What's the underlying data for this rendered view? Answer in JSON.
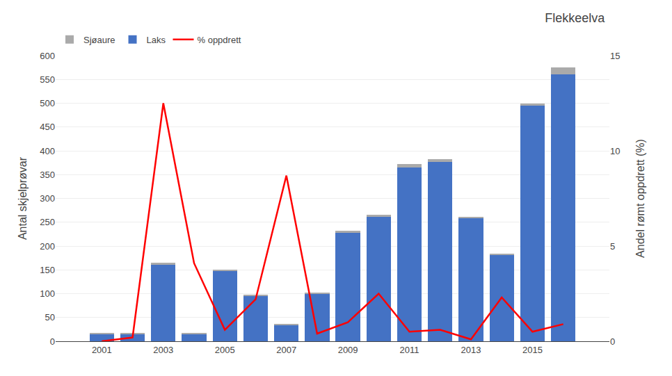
{
  "chart_data": {
    "type": "bar",
    "title": "Flekkeelva",
    "x": [
      2001,
      2002,
      2003,
      2004,
      2005,
      2006,
      2007,
      2008,
      2009,
      2010,
      2011,
      2012,
      2013,
      2014,
      2015,
      2016
    ],
    "series": [
      {
        "name": "Laks",
        "color": "#4472C4",
        "values": [
          15,
          15,
          160,
          15,
          148,
          95,
          35,
          100,
          228,
          262,
          365,
          377,
          258,
          182,
          495,
          560
        ]
      },
      {
        "name": "Sjøaure",
        "color": "#AAAAAA",
        "values": [
          3,
          3,
          5,
          2,
          2,
          3,
          2,
          2,
          4,
          3,
          8,
          5,
          3,
          2,
          4,
          15
        ]
      },
      {
        "name": "% oppdrett",
        "color": "#FF0000",
        "type": "line",
        "axis": "y2",
        "values": [
          0.0,
          0.2,
          12.5,
          4.1,
          0.6,
          2.2,
          8.7,
          0.4,
          1.0,
          2.5,
          0.5,
          0.6,
          0.1,
          2.3,
          0.5,
          0.9
        ]
      }
    ],
    "stacked": true,
    "ylabel": "Antal skjelprøvar",
    "y2label": "Andel rømt oppdrett (%)",
    "xlim": [
      1999.5,
      2017.5
    ],
    "xticks": [
      2001,
      2003,
      2005,
      2007,
      2009,
      2011,
      2013,
      2015
    ],
    "ylim": [
      0,
      600
    ],
    "yticks": [
      0,
      50,
      100,
      150,
      200,
      250,
      300,
      350,
      400,
      450,
      500,
      550,
      600
    ],
    "y2lim": [
      0,
      15
    ],
    "y2ticks": [
      0,
      5,
      10,
      15
    ],
    "grid": true,
    "legend": "upper left"
  }
}
